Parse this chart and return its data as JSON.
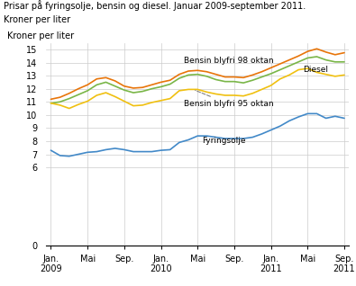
{
  "title_line1": "Prisar på fyringsolje, bensin og diesel. Januar 2009-september 2011.",
  "title_line2": "Kroner per liter",
  "ylim": [
    0,
    15.5
  ],
  "yticks": [
    0,
    6,
    7,
    8,
    9,
    10,
    11,
    12,
    13,
    14,
    15
  ],
  "xtick_labels": [
    "Jan.\n2009",
    "Mai",
    "Sep.",
    "Jan.\n2010",
    "Mai",
    "Sep.",
    "Jan.\n2011",
    "Mai",
    "Sep.\n2011"
  ],
  "xtick_pos": [
    0,
    4,
    8,
    12,
    16,
    20,
    24,
    28,
    32
  ],
  "colors": {
    "bensin98": "#E8750A",
    "diesel": "#7AB648",
    "bensin95": "#F0C010",
    "fyringsolje": "#4289C8"
  },
  "bensin98": [
    11.2,
    11.35,
    11.65,
    12.0,
    12.3,
    12.75,
    12.85,
    12.6,
    12.2,
    12.05,
    12.1,
    12.3,
    12.5,
    12.65,
    13.1,
    13.35,
    13.4,
    13.3,
    13.1,
    12.9,
    12.9,
    12.85,
    13.05,
    13.3,
    13.6,
    13.9,
    14.2,
    14.5,
    14.85,
    15.05,
    14.8,
    14.6,
    14.75
  ],
  "diesel": [
    10.9,
    11.0,
    11.25,
    11.55,
    11.85,
    12.3,
    12.5,
    12.2,
    11.9,
    11.7,
    11.8,
    12.0,
    12.15,
    12.35,
    12.8,
    13.05,
    13.1,
    12.95,
    12.7,
    12.55,
    12.55,
    12.45,
    12.65,
    12.9,
    13.15,
    13.45,
    13.75,
    14.05,
    14.35,
    14.45,
    14.2,
    14.05,
    14.05
  ],
  "bensin95": [
    10.9,
    10.75,
    10.5,
    10.8,
    11.05,
    11.5,
    11.7,
    11.4,
    11.05,
    10.7,
    10.75,
    10.95,
    11.1,
    11.25,
    11.85,
    11.95,
    11.95,
    11.75,
    11.6,
    11.5,
    11.5,
    11.45,
    11.65,
    11.95,
    12.25,
    12.75,
    13.05,
    13.45,
    13.55,
    13.25,
    13.1,
    12.95,
    13.05
  ],
  "fyringsolje": [
    7.3,
    6.9,
    6.85,
    7.0,
    7.15,
    7.2,
    7.35,
    7.45,
    7.35,
    7.2,
    7.2,
    7.2,
    7.3,
    7.35,
    7.9,
    8.1,
    8.4,
    8.4,
    8.3,
    8.2,
    8.2,
    8.2,
    8.3,
    8.55,
    8.85,
    9.15,
    9.55,
    9.85,
    10.1,
    10.1,
    9.75,
    9.9,
    9.75
  ],
  "n_points": 33
}
